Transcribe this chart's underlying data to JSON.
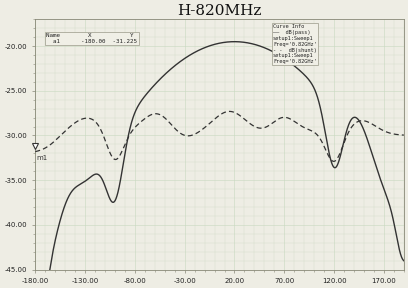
{
  "title": "H-820MHz",
  "title_fontsize": 11,
  "xlim": [
    -180,
    190
  ],
  "ylim": [
    -45,
    -17
  ],
  "xticks": [
    -180,
    -130,
    -80,
    -30,
    20,
    70,
    120,
    170
  ],
  "yticks": [
    -20,
    -25,
    -30,
    -35,
    -40,
    -45
  ],
  "bg_color": "#eeede4",
  "grid_color": "#c8d8c0",
  "line1_color": "#333333",
  "line2_color": "#333333",
  "marker_x": -180,
  "marker_y": -31.225,
  "ann_text": "Name        X           Y\n  a1      -180.00   -31.225",
  "curve_info": "Curve Info\n——  dB(pass)\nsetup1:Sweep1\nFreq='0.82GHz'\n- -  dB(shunt)\nsetup1:Sweep1\nFreq='0.82GHz'"
}
